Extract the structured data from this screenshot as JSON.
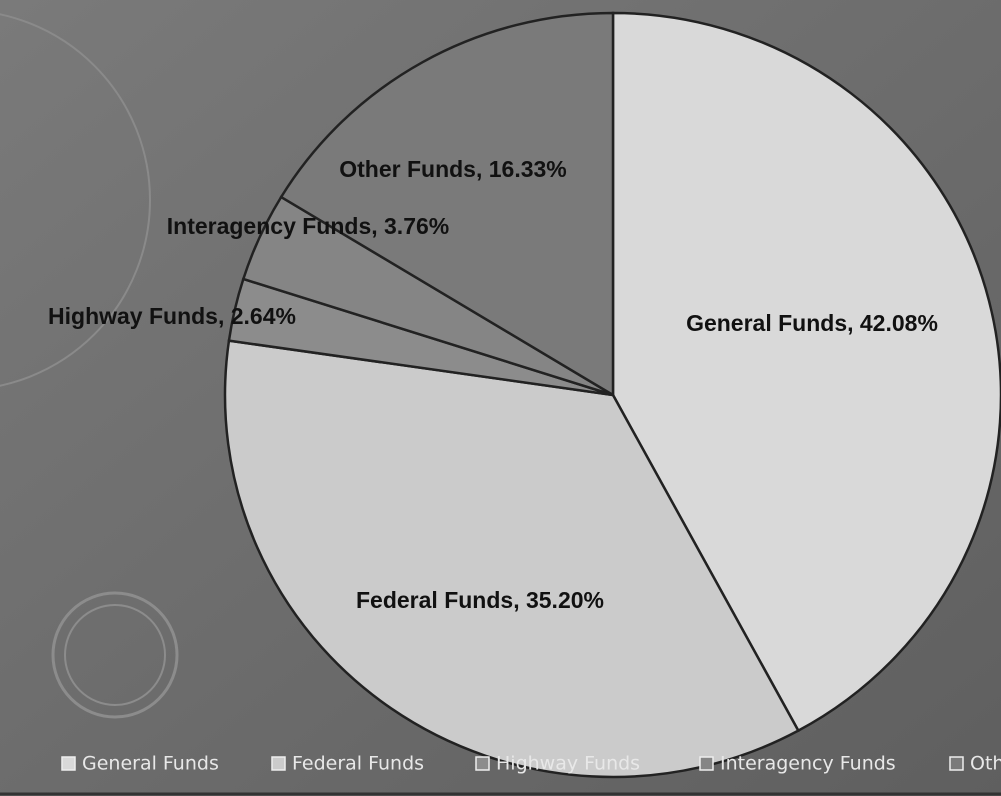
{
  "chart_data": {
    "type": "pie",
    "categories": [
      "General Funds",
      "Federal Funds",
      "Highway Funds",
      "Interagency Funds",
      "Other Funds"
    ],
    "values": [
      42.08,
      35.2,
      2.64,
      3.76,
      16.33
    ],
    "value_labels": [
      "General Funds, 42.08%",
      "Federal Funds, 35.20%",
      "Highway Funds, 2.64%",
      "Interagency Funds, 3.76%",
      "Other Funds, 16.33%"
    ],
    "colors": [
      "#d9d9d9",
      "#cbcbcb",
      "#8c8c8c",
      "#858585",
      "#7a7a7a"
    ],
    "legend": "bottom"
  }
}
